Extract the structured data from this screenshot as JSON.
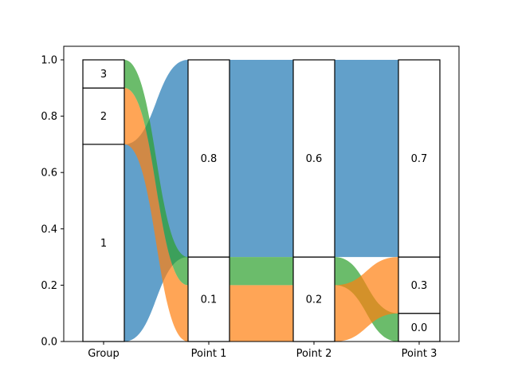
{
  "chart_data": {
    "type": "alluvial",
    "columns": [
      "Group",
      "Point 1",
      "Point 2",
      "Point 3"
    ],
    "ylim": [
      0,
      1.0
    ],
    "y_ticks": [
      "0.0",
      "0.2",
      "0.4",
      "0.6",
      "0.8",
      "1.0"
    ],
    "y_tick_values": [
      0.0,
      0.2,
      0.4,
      0.6,
      0.8,
      1.0
    ],
    "series_colors": {
      "1": "#1f77b4",
      "2": "#ff7f0e",
      "3": "#2ca02c"
    },
    "nodes": [
      [
        {
          "label": "1",
          "y0": 0.0,
          "y1": 0.7
        },
        {
          "label": "2",
          "y0": 0.7,
          "y1": 0.9
        },
        {
          "label": "3",
          "y0": 0.9,
          "y1": 1.0
        }
      ],
      [
        {
          "label": "0.1",
          "y0": 0.0,
          "y1": 0.3
        },
        {
          "label": "0.8",
          "y0": 0.3,
          "y1": 1.0
        }
      ],
      [
        {
          "label": "0.2",
          "y0": 0.0,
          "y1": 0.3
        },
        {
          "label": "0.6",
          "y0": 0.3,
          "y1": 1.0
        }
      ],
      [
        {
          "label": "0.0",
          "y0": 0.0,
          "y1": 0.1
        },
        {
          "label": "0.3",
          "y0": 0.1,
          "y1": 0.3
        },
        {
          "label": "0.7",
          "y0": 0.3,
          "y1": 1.0
        }
      ]
    ],
    "flows": [
      {
        "series": "1",
        "from_col": 0,
        "to_col": 1,
        "src": [
          0.0,
          0.7
        ],
        "dst": [
          0.3,
          1.0
        ]
      },
      {
        "series": "2",
        "from_col": 0,
        "to_col": 1,
        "src": [
          0.7,
          0.9
        ],
        "dst": [
          0.0,
          0.2
        ]
      },
      {
        "series": "3",
        "from_col": 0,
        "to_col": 1,
        "src": [
          0.9,
          1.0
        ],
        "dst": [
          0.2,
          0.3
        ]
      },
      {
        "series": "1",
        "from_col": 1,
        "to_col": 2,
        "src": [
          0.3,
          1.0
        ],
        "dst": [
          0.3,
          1.0
        ]
      },
      {
        "series": "2",
        "from_col": 1,
        "to_col": 2,
        "src": [
          0.0,
          0.2
        ],
        "dst": [
          0.0,
          0.2
        ]
      },
      {
        "series": "3",
        "from_col": 1,
        "to_col": 2,
        "src": [
          0.2,
          0.3
        ],
        "dst": [
          0.2,
          0.3
        ]
      },
      {
        "series": "1",
        "from_col": 2,
        "to_col": 3,
        "src": [
          0.3,
          1.0
        ],
        "dst": [
          0.3,
          1.0
        ]
      },
      {
        "series": "3",
        "from_col": 2,
        "to_col": 3,
        "src": [
          0.2,
          0.3
        ],
        "dst": [
          0.0,
          0.1
        ]
      },
      {
        "series": "2",
        "from_col": 2,
        "to_col": 3,
        "src": [
          0.0,
          0.2
        ],
        "dst": [
          0.1,
          0.3
        ]
      }
    ],
    "grid": false,
    "legend": "none"
  }
}
